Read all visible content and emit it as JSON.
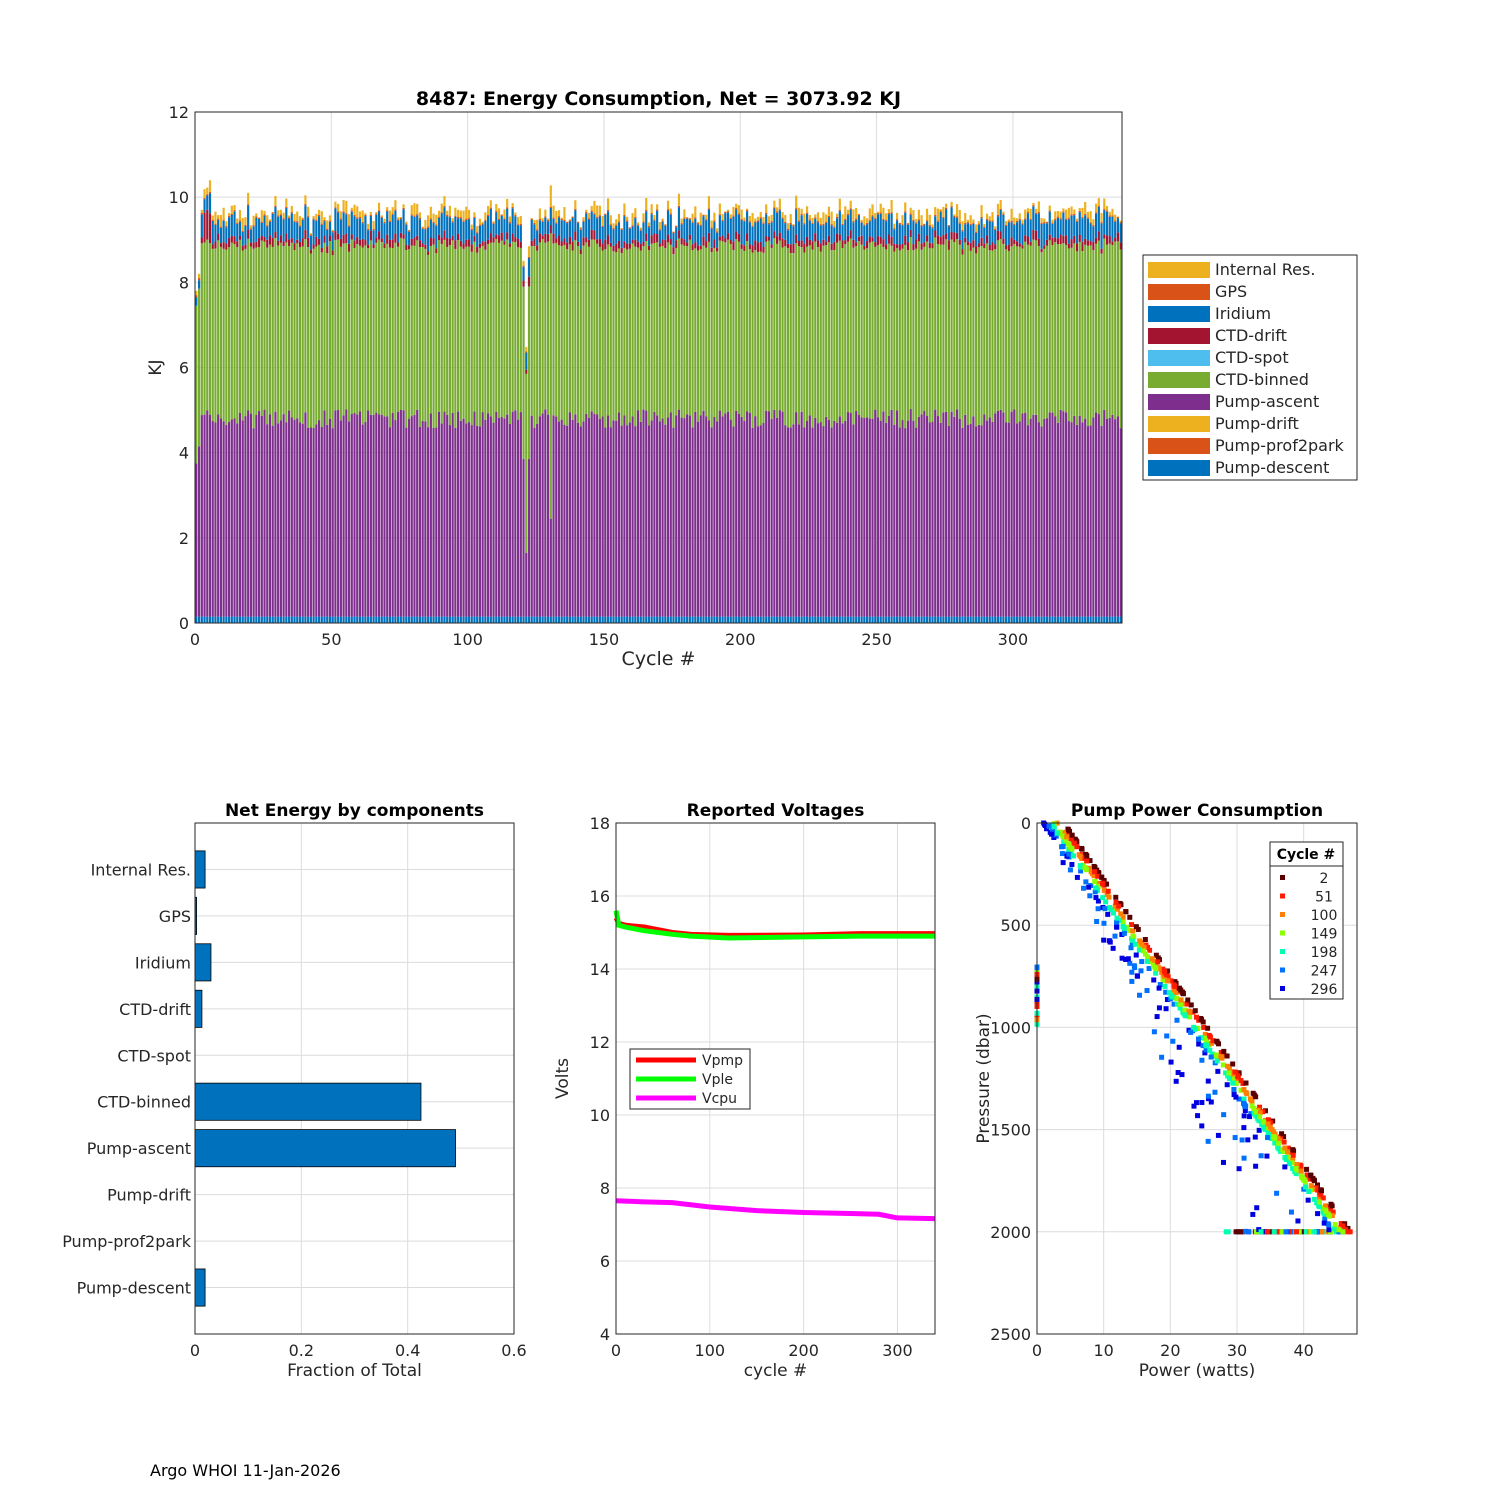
{
  "footer": "Argo WHOI 11-Jan-2026",
  "chart_data": [
    {
      "type": "bar",
      "stacked": true,
      "title": "8487: Energy Consumption,  Net = 3073.92 KJ",
      "xlabel": "Cycle #",
      "ylabel": "KJ",
      "xlim": [
        0,
        340
      ],
      "ylim": [
        0,
        12
      ],
      "xticks": [
        0,
        50,
        100,
        150,
        200,
        250,
        300
      ],
      "yticks": [
        0,
        2,
        4,
        6,
        8,
        10,
        12
      ],
      "grid": true,
      "legend_position": "right",
      "n_cycles": 340,
      "series": [
        {
          "name": "Pump-descent",
          "color": "#0072BD",
          "typical": 0.15
        },
        {
          "name": "Pump-prof2park",
          "color": "#D95319",
          "typical": 0.0
        },
        {
          "name": "Pump-drift",
          "color": "#EDB120",
          "typical": 0.0
        },
        {
          "name": "Pump-ascent",
          "color": "#7E2F8E",
          "typical": 4.65
        },
        {
          "name": "CTD-binned",
          "color": "#77AC30",
          "typical": 4.0
        },
        {
          "name": "CTD-spot",
          "color": "#4DBEEE",
          "typical": 0.0
        },
        {
          "name": "CTD-drift",
          "color": "#A2142F",
          "typical": 0.15
        },
        {
          "name": "Iridium",
          "color": "#0072BD",
          "typical": 0.32
        },
        {
          "name": "GPS",
          "color": "#D95319",
          "typical": 0.03
        },
        {
          "name": "Internal Res.",
          "color": "#EDB120",
          "typical": 0.2
        }
      ],
      "notes": {
        "first_cycles_total": 7.5,
        "cycle_122_total": 6.6,
        "cycle_132_total": 10.5
      }
    },
    {
      "type": "bar",
      "orientation": "horizontal",
      "title": "Net Energy by components",
      "xlabel": "Fraction of Total",
      "xlim": [
        0,
        0.6
      ],
      "xticks": [
        0,
        0.2,
        0.4,
        0.6
      ],
      "categories": [
        "Internal Res.",
        "GPS",
        "Iridium",
        "CTD-drift",
        "CTD-spot",
        "CTD-binned",
        "Pump-ascent",
        "Pump-drift",
        "Pump-prof2park",
        "Pump-descent"
      ],
      "values": [
        0.019,
        0.003,
        0.03,
        0.013,
        0,
        0.425,
        0.49,
        0,
        0,
        0.019
      ],
      "color": "#0072BD"
    },
    {
      "type": "line",
      "title": "Reported Voltages",
      "xlabel": "cycle #",
      "ylabel": "Volts",
      "xlim": [
        0,
        340
      ],
      "ylim": [
        4,
        18
      ],
      "xticks": [
        0,
        100,
        200,
        300
      ],
      "yticks": [
        4,
        6,
        8,
        10,
        12,
        14,
        16,
        18
      ],
      "legend_position": "center-left",
      "series": [
        {
          "name": "Vpmp",
          "color": "#FF0000",
          "x": [
            0,
            3,
            10,
            30,
            60,
            80,
            120,
            200,
            260,
            340
          ],
          "y": [
            15.4,
            15.25,
            15.2,
            15.15,
            15.0,
            14.95,
            14.92,
            14.93,
            14.97,
            14.97
          ]
        },
        {
          "name": "Vple",
          "color": "#00FF00",
          "x": [
            0,
            3,
            10,
            30,
            60,
            80,
            120,
            200,
            260,
            340
          ],
          "y": [
            15.6,
            15.2,
            15.15,
            15.05,
            14.95,
            14.9,
            14.85,
            14.88,
            14.9,
            14.9
          ]
        },
        {
          "name": "Vcpu",
          "color": "#FF00FF",
          "x": [
            0,
            30,
            60,
            100,
            150,
            200,
            250,
            280,
            300,
            340
          ],
          "y": [
            7.65,
            7.62,
            7.6,
            7.48,
            7.38,
            7.33,
            7.3,
            7.28,
            7.18,
            7.16
          ]
        }
      ]
    },
    {
      "type": "scatter",
      "title": "Pump Power Consumption",
      "xlabel": "Power (watts)",
      "ylabel": "Pressure (dbar)",
      "xlim": [
        0,
        48
      ],
      "ylim": [
        2500,
        0
      ],
      "xticks": [
        0,
        10,
        20,
        30,
        40
      ],
      "yticks": [
        0,
        500,
        1000,
        1500,
        2000,
        2500
      ],
      "legend_title": "Cycle #",
      "legend_position": "top-right",
      "legend": [
        {
          "label": "2",
          "color": "#5a0000"
        },
        {
          "label": "51",
          "color": "#FF1a00"
        },
        {
          "label": "100",
          "color": "#FF7f00"
        },
        {
          "label": "149",
          "color": "#8cff00"
        },
        {
          "label": "198",
          "color": "#00ffb0"
        },
        {
          "label": "247",
          "color": "#0070ff"
        },
        {
          "label": "296",
          "color": "#0000e0"
        }
      ],
      "relation": {
        "p_max": 2000,
        "power_at_0": 4,
        "power_at_2000": 47
      }
    }
  ]
}
